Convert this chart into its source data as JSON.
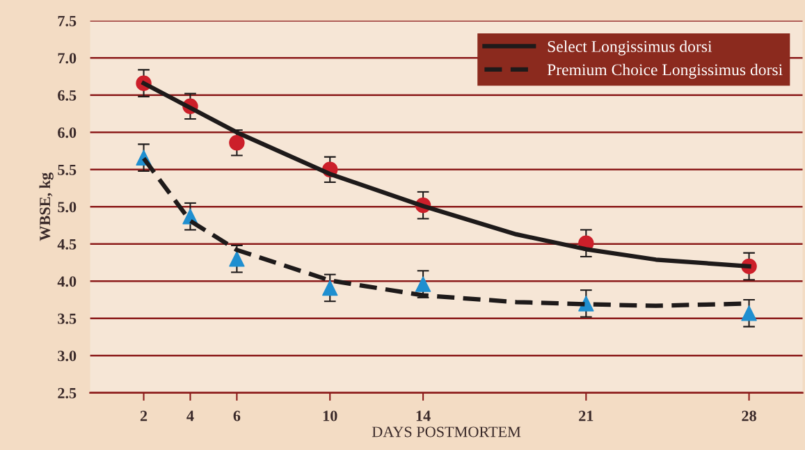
{
  "chart_data": {
    "type": "line",
    "xlabel": "DAYS POSTMORTEM",
    "ylabel": "WBSE, kg",
    "xlim": [
      -0.3,
      30.3
    ],
    "xticks": [
      2,
      4,
      6,
      10,
      14,
      21,
      28
    ],
    "ylim": [
      2.5,
      7.5
    ],
    "yticks": [
      {
        "value": 2.5,
        "label": "2.5"
      },
      {
        "value": 3.0,
        "label": "3.0"
      },
      {
        "value": 3.5,
        "label": "3.5"
      },
      {
        "value": 4.0,
        "label": "4.0"
      },
      {
        "value": 4.5,
        "label": "4.5"
      },
      {
        "value": 5.0,
        "label": "5.0"
      },
      {
        "value": 5.5,
        "label": "5.5"
      },
      {
        "value": 6.0,
        "label": "6.0"
      },
      {
        "value": 6.5,
        "label": "6.5"
      },
      {
        "value": 7.0,
        "label": "7.0"
      },
      {
        "value": 7.5,
        "label": "7.5"
      }
    ],
    "grid": "y",
    "legend": "top right",
    "series": [
      {
        "name": "Select Longissimus dorsi",
        "color": "#1e1a1a",
        "line_style": "solid",
        "marker": "none",
        "x": [
          2,
          6,
          10,
          14,
          18,
          21,
          24,
          28
        ],
        "values": [
          6.66,
          6.0,
          5.44,
          5.01,
          4.63,
          4.43,
          4.29,
          4.2
        ]
      },
      {
        "name": "Premium Choice Longissimus dorsi",
        "color": "#1e1a1a",
        "line_style": "dashed",
        "marker": "none",
        "x": [
          2,
          4,
          6,
          10,
          14,
          18,
          21,
          24,
          28
        ],
        "values": [
          5.65,
          4.81,
          4.42,
          4.01,
          3.81,
          3.72,
          3.69,
          3.67,
          3.7
        ]
      },
      {
        "type": "scatter",
        "color": "#cc1f2a",
        "marker": "circle",
        "x": [
          2,
          4,
          6,
          10,
          14,
          21,
          28
        ],
        "values": [
          6.66,
          6.35,
          5.86,
          5.5,
          5.02,
          4.51,
          4.2
        ],
        "errors": [
          0.18,
          0.17,
          0.17,
          0.17,
          0.18,
          0.18,
          0.18
        ]
      },
      {
        "type": "scatter",
        "color": "#1f8fd0",
        "marker": "triangle",
        "x": [
          2,
          4,
          6,
          10,
          14,
          21,
          28
        ],
        "values": [
          5.66,
          4.87,
          4.3,
          3.91,
          3.96,
          3.7,
          3.57
        ],
        "errors": [
          0.18,
          0.18,
          0.18,
          0.18,
          0.18,
          0.18,
          0.18
        ]
      }
    ]
  }
}
